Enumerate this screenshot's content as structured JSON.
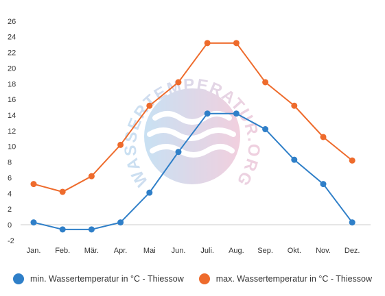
{
  "chart_data": {
    "type": "line",
    "categories": [
      "Jan.",
      "Feb.",
      "Mär.",
      "Apr.",
      "Mai",
      "Jun.",
      "Juli.",
      "Aug.",
      "Sep.",
      "Okt.",
      "Nov.",
      "Dez."
    ],
    "series": [
      {
        "name": "min. Wassertemperatur in °C - Thiessow",
        "color": "#2f7fc8",
        "values": [
          0.3,
          -0.6,
          -0.6,
          0.3,
          4.1,
          9.3,
          14.2,
          14.2,
          12.2,
          8.3,
          5.2,
          0.3
        ]
      },
      {
        "name": "max. Wassertemperatur in °C - Thiessow",
        "color": "#ee6b2c",
        "values": [
          5.2,
          4.2,
          6.2,
          10.2,
          15.2,
          18.2,
          23.2,
          23.2,
          18.2,
          15.2,
          11.2,
          8.2
        ]
      }
    ],
    "yticks": [
      26,
      24,
      22,
      20,
      18,
      16,
      14,
      12,
      10,
      8,
      6,
      4,
      2,
      0,
      -2
    ],
    "ylim": [
      -2,
      26
    ],
    "title": "",
    "xlabel": "",
    "ylabel": "",
    "grid": false,
    "legend_position": "bottom"
  },
  "watermark": {
    "text": "WASSERTEMPERATUR.ORG"
  }
}
